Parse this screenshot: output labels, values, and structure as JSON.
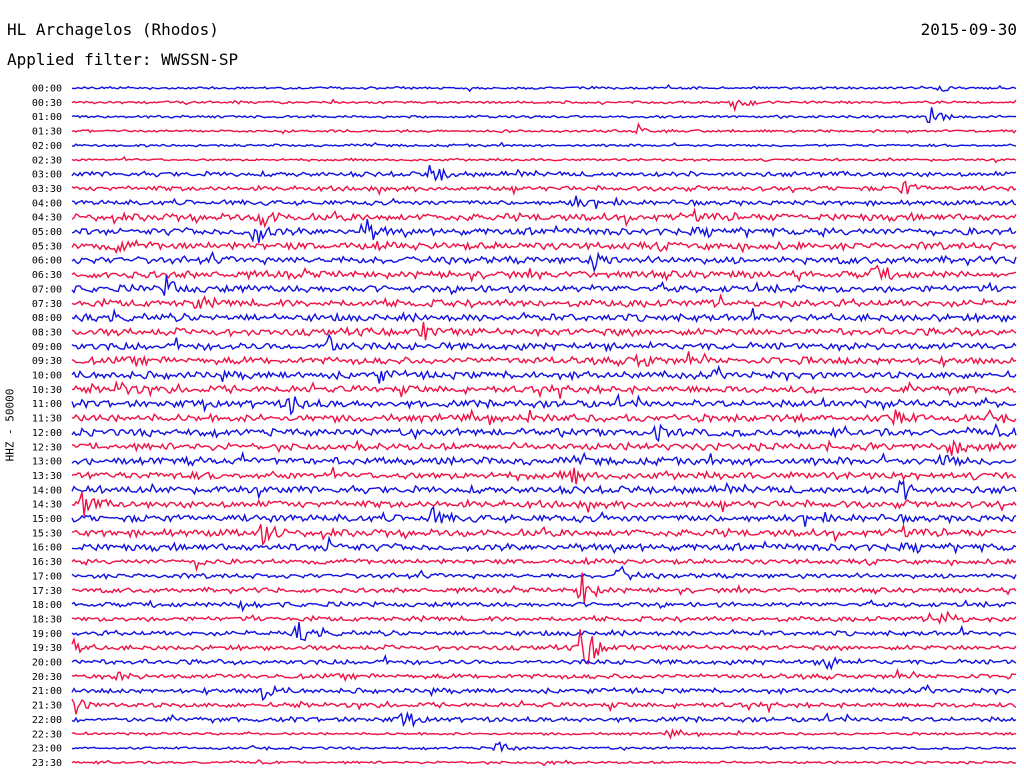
{
  "header": {
    "station": "HL Archagelos (Rhodos)",
    "filter": "Applied filter: WWSSN-SP",
    "date": "2015-09-30"
  },
  "channel_label": "HHZ - 50000",
  "colors": {
    "blue": "#1010e0",
    "red": "#ee1144"
  },
  "chart_data": {
    "type": "line",
    "title": "HL Archagelos (Rhodos)",
    "subtitle": "Applied filter: WWSSN-SP",
    "date": "2015-09-30",
    "ylabel": "HHZ - 50000",
    "row_labels": [
      "00:00",
      "00:30",
      "01:00",
      "01:30",
      "02:00",
      "02:30",
      "03:00",
      "03:30",
      "04:00",
      "04:30",
      "05:00",
      "05:30",
      "06:00",
      "06:30",
      "07:00",
      "07:30",
      "08:00",
      "08:30",
      "09:00",
      "09:30",
      "10:00",
      "10:30",
      "11:00",
      "11:30",
      "12:00",
      "12:30",
      "13:00",
      "13:30",
      "14:00",
      "14:30",
      "15:00",
      "15:30",
      "16:00",
      "16:30",
      "17:00",
      "17:30",
      "18:00",
      "18:30",
      "19:00",
      "19:30",
      "20:00",
      "20:30",
      "21:00",
      "21:30",
      "22:00",
      "22:30",
      "23:00",
      "23:30"
    ],
    "row_colors": [
      "blue",
      "red"
    ],
    "row_noise": [
      1,
      1,
      1,
      1,
      1,
      1,
      2,
      2,
      2,
      3,
      3,
      3,
      3,
      3,
      3,
      3,
      3,
      3,
      3,
      3,
      3,
      3,
      3,
      3,
      3,
      3,
      3,
      3,
      3,
      3,
      3,
      3,
      3,
      2,
      2,
      2,
      2,
      2,
      2,
      2,
      2,
      2,
      2,
      2,
      2,
      1,
      1,
      1
    ],
    "events": [
      {
        "row": 0,
        "x": 0.92,
        "amp": 3
      },
      {
        "row": 1,
        "x": 0.7,
        "amp": 9
      },
      {
        "row": 2,
        "x": 0.91,
        "amp": 12
      },
      {
        "row": 3,
        "x": 0.6,
        "amp": 7
      },
      {
        "row": 6,
        "x": 0.38,
        "amp": 18
      },
      {
        "row": 7,
        "x": 0.88,
        "amp": 8
      },
      {
        "row": 8,
        "x": 0.53,
        "amp": 8
      },
      {
        "row": 9,
        "x": 0.2,
        "amp": 14
      },
      {
        "row": 10,
        "x": 0.19,
        "amp": 20
      },
      {
        "row": 10,
        "x": 0.31,
        "amp": 14
      },
      {
        "row": 11,
        "x": 0.05,
        "amp": 8
      },
      {
        "row": 12,
        "x": 0.55,
        "amp": 10
      },
      {
        "row": 13,
        "x": 0.85,
        "amp": 9
      },
      {
        "row": 14,
        "x": 0.1,
        "amp": 10
      },
      {
        "row": 15,
        "x": 0.13,
        "amp": 8
      },
      {
        "row": 17,
        "x": 0.37,
        "amp": 9
      },
      {
        "row": 18,
        "x": 0.27,
        "amp": 16
      },
      {
        "row": 19,
        "x": 0.6,
        "amp": 9
      },
      {
        "row": 20,
        "x": 0.32,
        "amp": 10
      },
      {
        "row": 21,
        "x": 0.05,
        "amp": 9
      },
      {
        "row": 22,
        "x": 0.23,
        "amp": 12
      },
      {
        "row": 23,
        "x": 0.87,
        "amp": 10
      },
      {
        "row": 24,
        "x": 0.62,
        "amp": 9
      },
      {
        "row": 25,
        "x": 0.93,
        "amp": 9
      },
      {
        "row": 26,
        "x": 0.92,
        "amp": 8
      },
      {
        "row": 27,
        "x": 0.53,
        "amp": 10
      },
      {
        "row": 28,
        "x": 0.88,
        "amp": 12
      },
      {
        "row": 29,
        "x": 0.01,
        "amp": 12
      },
      {
        "row": 30,
        "x": 0.38,
        "amp": 10
      },
      {
        "row": 31,
        "x": 0.2,
        "amp": 12
      },
      {
        "row": 32,
        "x": 0.27,
        "amp": 10
      },
      {
        "row": 33,
        "x": 0.13,
        "amp": 7
      },
      {
        "row": 34,
        "x": 0.58,
        "amp": 10
      },
      {
        "row": 35,
        "x": 0.54,
        "amp": 18
      },
      {
        "row": 36,
        "x": 0.18,
        "amp": 10
      },
      {
        "row": 37,
        "x": 0.92,
        "amp": 18
      },
      {
        "row": 38,
        "x": 0.24,
        "amp": 10
      },
      {
        "row": 39,
        "x": 0.54,
        "amp": 40
      },
      {
        "row": 39,
        "x": 0.0,
        "amp": 9
      },
      {
        "row": 40,
        "x": 0.8,
        "amp": 10
      },
      {
        "row": 41,
        "x": 0.05,
        "amp": 5
      },
      {
        "row": 42,
        "x": 0.2,
        "amp": 12
      },
      {
        "row": 43,
        "x": 0.0,
        "amp": 12
      },
      {
        "row": 44,
        "x": 0.35,
        "amp": 10
      },
      {
        "row": 45,
        "x": 0.63,
        "amp": 6
      },
      {
        "row": 46,
        "x": 0.45,
        "amp": 9
      },
      {
        "row": 47,
        "x": 0.5,
        "amp": 3
      }
    ]
  }
}
